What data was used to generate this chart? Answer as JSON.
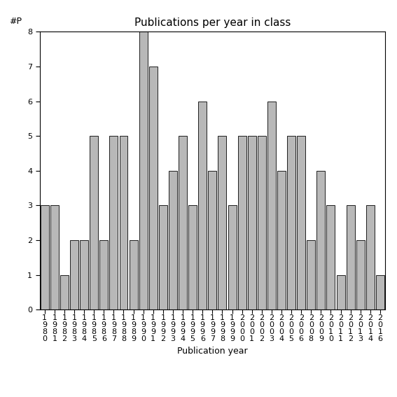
{
  "title": "Publications per year in class",
  "xlabel": "Publication year",
  "ylabel": "#P",
  "bar_color": "#b8b8b8",
  "bar_edge_color": "#000000",
  "background_color": "#ffffff",
  "years": [
    "1980",
    "1981",
    "1982",
    "1983",
    "1984",
    "1985",
    "1986",
    "1987",
    "1988",
    "1989",
    "1990",
    "1991",
    "1992",
    "1993",
    "1994",
    "1995",
    "1996",
    "1997",
    "1998",
    "1999",
    "2000",
    "2001",
    "2002",
    "2003",
    "2004",
    "2005",
    "2006",
    "2008",
    "2009",
    "2010",
    "2011",
    "2012",
    "2013",
    "2014",
    "2016"
  ],
  "values": [
    3,
    3,
    1,
    2,
    2,
    5,
    2,
    5,
    5,
    2,
    8,
    7,
    3,
    4,
    5,
    3,
    6,
    4,
    5,
    3,
    5,
    5,
    5,
    6,
    4,
    5,
    5,
    2,
    4,
    3,
    1,
    3,
    2,
    3,
    1
  ],
  "ylim": [
    0,
    8
  ],
  "yticks": [
    0,
    1,
    2,
    3,
    4,
    5,
    6,
    7,
    8
  ],
  "title_fontsize": 11,
  "axis_fontsize": 9,
  "tick_fontsize": 8
}
